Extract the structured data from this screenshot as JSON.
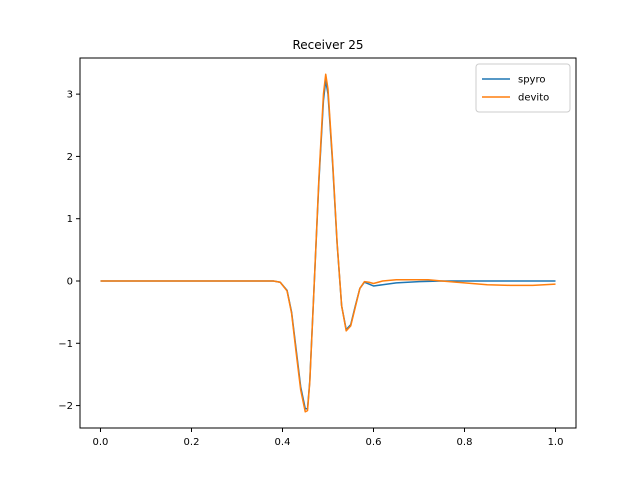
{
  "chart_data": {
    "type": "line",
    "title": "Receiver 25",
    "xlabel": "",
    "ylabel": "",
    "xlim": [
      -0.045,
      1.045
    ],
    "ylim": [
      -2.36,
      3.58
    ],
    "xticks": [
      0.0,
      0.2,
      0.4,
      0.6,
      0.8,
      1.0
    ],
    "xtick_labels": [
      "0.0",
      "0.2",
      "0.4",
      "0.6",
      "0.8",
      "1.0"
    ],
    "yticks": [
      -2,
      -1,
      0,
      1,
      2,
      3
    ],
    "ytick_labels": [
      "−2",
      "−1",
      "0",
      "1",
      "2",
      "3"
    ],
    "grid": false,
    "legend_position": "top-right",
    "series": [
      {
        "name": "spyro",
        "color": "#1f77b4",
        "x": [
          0.0,
          0.1,
          0.2,
          0.3,
          0.38,
          0.395,
          0.41,
          0.42,
          0.43,
          0.44,
          0.45,
          0.455,
          0.46,
          0.47,
          0.48,
          0.49,
          0.495,
          0.5,
          0.51,
          0.52,
          0.53,
          0.54,
          0.55,
          0.56,
          0.57,
          0.58,
          0.59,
          0.6,
          0.62,
          0.65,
          0.7,
          0.75,
          0.8,
          0.85,
          0.9,
          0.95,
          1.0
        ],
        "y": [
          0.0,
          0.0,
          0.0,
          0.0,
          0.0,
          -0.02,
          -0.15,
          -0.5,
          -1.1,
          -1.7,
          -2.05,
          -2.05,
          -1.6,
          0.0,
          1.6,
          2.9,
          3.22,
          3.0,
          1.9,
          0.6,
          -0.4,
          -0.78,
          -0.7,
          -0.4,
          -0.12,
          -0.02,
          -0.05,
          -0.08,
          -0.06,
          -0.03,
          -0.01,
          0.0,
          0.0,
          0.0,
          0.0,
          0.0,
          0.0
        ]
      },
      {
        "name": "devito",
        "color": "#ff7f0e",
        "x": [
          0.0,
          0.1,
          0.2,
          0.3,
          0.38,
          0.395,
          0.41,
          0.42,
          0.43,
          0.44,
          0.45,
          0.455,
          0.46,
          0.47,
          0.48,
          0.49,
          0.495,
          0.5,
          0.51,
          0.52,
          0.53,
          0.54,
          0.55,
          0.56,
          0.57,
          0.58,
          0.59,
          0.6,
          0.62,
          0.65,
          0.68,
          0.72,
          0.75,
          0.8,
          0.85,
          0.9,
          0.95,
          1.0
        ],
        "y": [
          0.0,
          0.0,
          0.0,
          0.0,
          0.0,
          -0.02,
          -0.16,
          -0.52,
          -1.15,
          -1.75,
          -2.1,
          -2.08,
          -1.62,
          0.0,
          1.65,
          3.0,
          3.32,
          3.08,
          1.95,
          0.62,
          -0.4,
          -0.8,
          -0.72,
          -0.42,
          -0.12,
          -0.01,
          -0.02,
          -0.04,
          0.0,
          0.02,
          0.02,
          0.02,
          0.0,
          -0.03,
          -0.06,
          -0.07,
          -0.07,
          -0.05
        ]
      }
    ]
  }
}
